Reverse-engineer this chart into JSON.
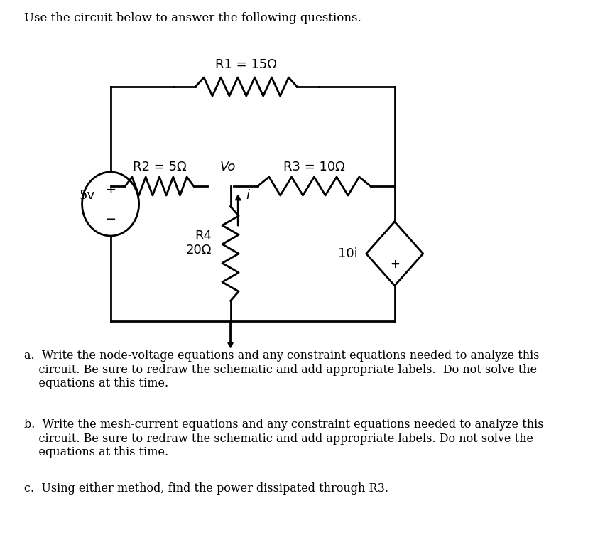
{
  "title_text": "Use the circuit below to answer the following questions.",
  "bg_color": "#ffffff",
  "line_color": "#000000",
  "text_color": "#000000",
  "R1_label": "R1 = 15Ω",
  "R2_label": "R2 = 5Ω",
  "R3_label": "R3 = 10Ω",
  "R4_label": "R4\n20Ω",
  "Vo_label": "Vo",
  "i_label": "i",
  "source_label": "5v",
  "dep_source_label": "10i",
  "plus_sign": "+",
  "minus_sign": "−",
  "question_a": "a.  Write the node-voltage equations and any constraint equations needed to analyze this\n    circuit. Be sure to redraw the schematic and add appropriate labels.  Do not solve the\n    equations at this time.",
  "question_b": "b.  Write the mesh-current equations and any constraint equations needed to analyze this\n    circuit. Be sure to redraw the schematic and add appropriate labels. Do not solve the\n    equations at this time.",
  "question_c": "c.  Using either method, find the power dissipated through R3."
}
